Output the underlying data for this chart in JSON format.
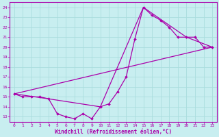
{
  "xlabel": "Windchill (Refroidissement éolien,°C)",
  "bg_color": "#c8eef0",
  "line_color": "#aa00aa",
  "grid_color": "#aadddd",
  "xlim": [
    -0.5,
    23.5
  ],
  "ylim": [
    12.5,
    24.5
  ],
  "yticks": [
    13,
    14,
    15,
    16,
    17,
    18,
    19,
    20,
    21,
    22,
    23,
    24
  ],
  "xticks": [
    0,
    1,
    2,
    3,
    4,
    5,
    6,
    7,
    8,
    9,
    10,
    11,
    12,
    13,
    14,
    15,
    16,
    17,
    18,
    19,
    20,
    21,
    22,
    23
  ],
  "line1_x": [
    0,
    1,
    2,
    3,
    4,
    5,
    6,
    7,
    8,
    9,
    10,
    11,
    12,
    13,
    14,
    15,
    16,
    17,
    18,
    19,
    20,
    21,
    22,
    23
  ],
  "line1_y": [
    15.3,
    15.0,
    15.0,
    15.0,
    14.8,
    13.3,
    13.0,
    12.8,
    13.3,
    12.8,
    14.0,
    14.3,
    15.5,
    17.0,
    20.8,
    24.0,
    23.2,
    22.7,
    22.0,
    21.0,
    21.0,
    21.0,
    20.0,
    20.0
  ],
  "line2_x": [
    0,
    4,
    10,
    15,
    20,
    23
  ],
  "line2_y": [
    15.3,
    14.8,
    14.0,
    24.0,
    21.0,
    20.0
  ],
  "line3_x": [
    0,
    23
  ],
  "line3_y": [
    15.3,
    20.0
  ],
  "tick_fontsize": 4.5,
  "xlabel_fontsize": 5.5,
  "marker_size": 2.0,
  "linewidth": 0.9
}
